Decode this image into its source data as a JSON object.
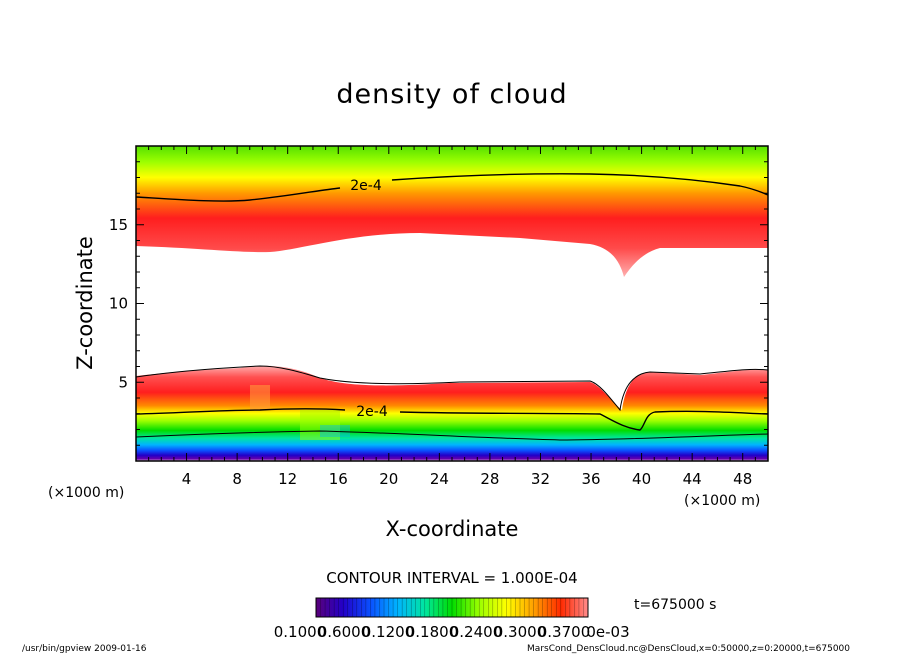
{
  "chart_data": {
    "type": "heatmap",
    "title": "density of cloud",
    "xlabel": "X-coordinate",
    "ylabel": "Z-coordinate",
    "x_unit": "(×1000 m)",
    "z_unit": "(×1000 m)",
    "xlim": [
      0,
      50
    ],
    "ylim": [
      0,
      20
    ],
    "x_ticks": [
      "4",
      "8",
      "12",
      "16",
      "20",
      "24",
      "28",
      "32",
      "36",
      "40",
      "44",
      "48"
    ],
    "y_ticks": [
      "5",
      "10",
      "15"
    ],
    "x_tick_values": [
      4,
      8,
      12,
      16,
      20,
      24,
      28,
      32,
      36,
      40,
      44,
      48
    ],
    "y_tick_values": [
      5,
      10,
      15
    ],
    "contour_labels": [
      "2e-4",
      "2e-4"
    ],
    "contour_interval": "CONTOUR INTERVAL = 1.000E-04",
    "time": "t=675000 s",
    "colorbar_labels": [
      "0.1000",
      "0.6000",
      "0.1200",
      "0.1800",
      "0.2400",
      "0.3000",
      "0.3700",
      "0e-03"
    ],
    "colorbar_colors": [
      "#5a007a",
      "#2200c8",
      "#0a50ff",
      "#00b4ff",
      "#00e6a0",
      "#00dc00",
      "#9bff00",
      "#ffff00",
      "#ffa000",
      "#ff2a00",
      "#ff8c8c"
    ]
  },
  "footer": {
    "left": "/usr/bin/gpview  2009-01-16",
    "right": "MarsCond_DensCloud.nc@DensCloud,x=0:50000,z=0:20000,t=675000"
  }
}
